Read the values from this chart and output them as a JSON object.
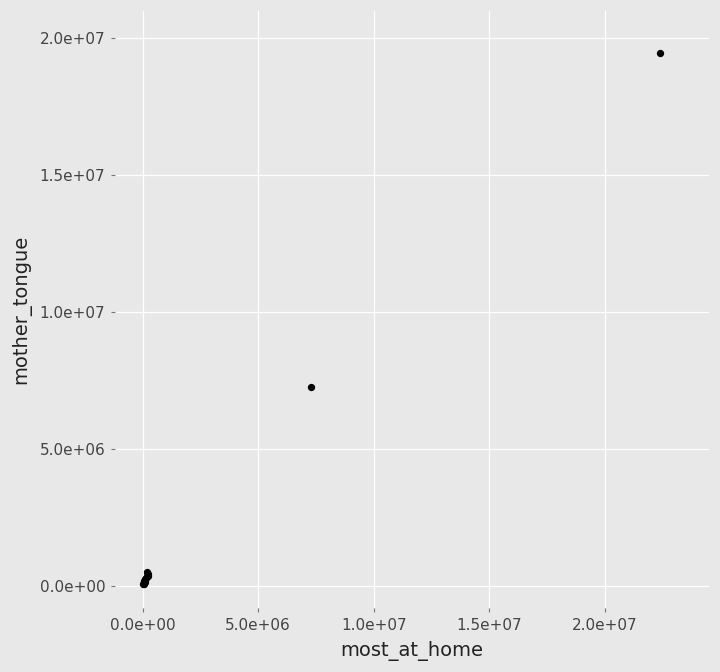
{
  "most_at_home": [
    22370000,
    7280000,
    200000,
    220000,
    180000,
    250000,
    150000,
    100000,
    90000,
    80000,
    70000,
    120000,
    60000,
    50000,
    40000,
    30000
  ],
  "mother_tongue": [
    19460000,
    7270000,
    500000,
    420000,
    380000,
    350000,
    300000,
    250000,
    200000,
    180000,
    160000,
    140000,
    120000,
    100000,
    80000,
    60000
  ],
  "point_color": "#000000",
  "point_size": 18,
  "background_color": "#E8E8E8",
  "grid_color": "#FFFFFF",
  "xlabel": "most_at_home",
  "ylabel": "mother_tongue",
  "xlim": [
    -1200000,
    24500000
  ],
  "ylim": [
    -800000,
    21000000
  ],
  "x_ticks": [
    0,
    5000000,
    10000000,
    15000000,
    20000000
  ],
  "y_ticks": [
    0,
    5000000,
    10000000,
    15000000,
    20000000
  ],
  "tick_label_fontsize": 11,
  "axis_label_fontsize": 14
}
